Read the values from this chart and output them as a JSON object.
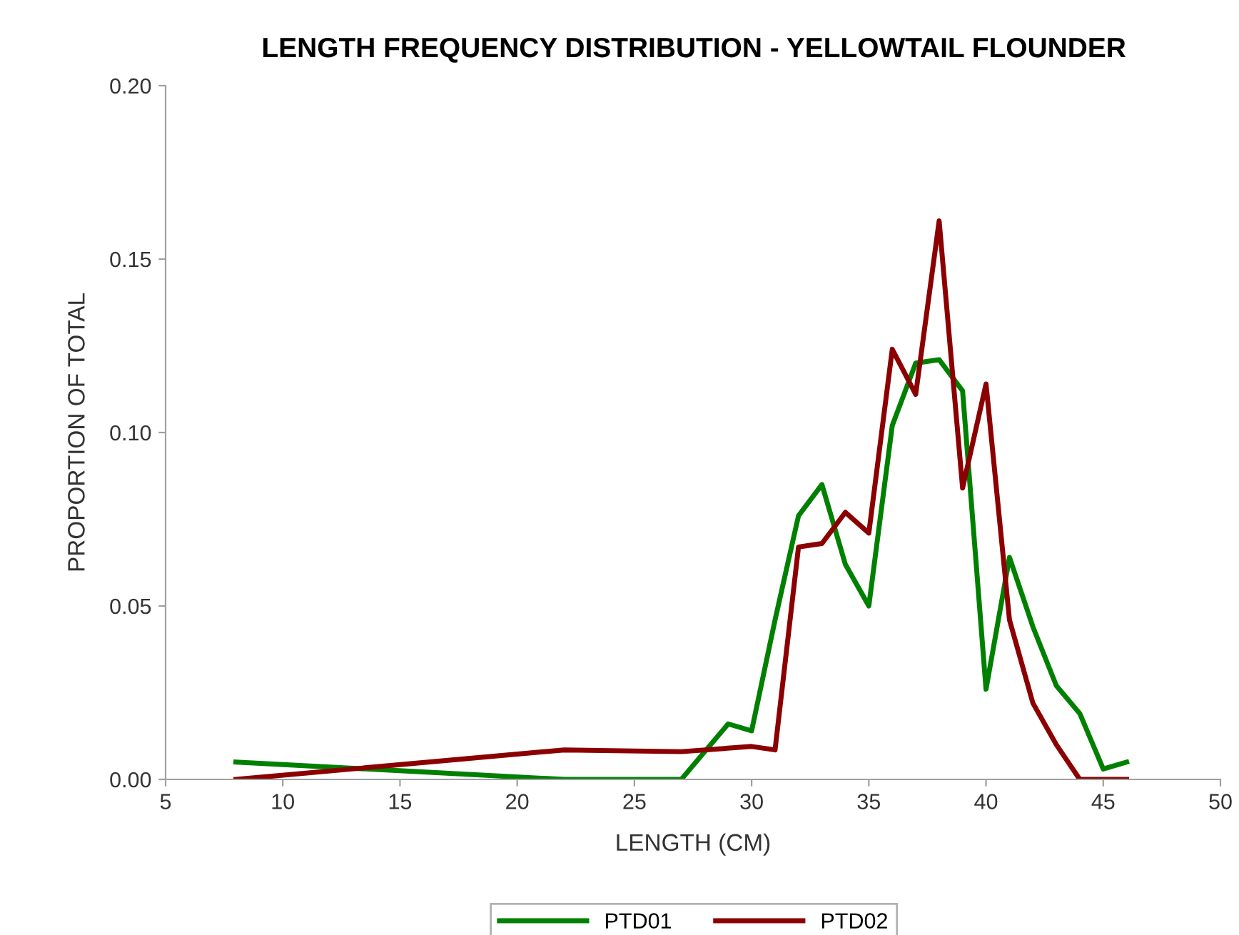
{
  "chart_data": {
    "type": "line",
    "title": "LENGTH FREQUENCY DISTRIBUTION - YELLOWTAIL FLOUNDER",
    "xlabel": "LENGTH (CM)",
    "ylabel": "PROPORTION OF TOTAL",
    "xlim": [
      5,
      50
    ],
    "xticks": [
      5,
      10,
      15,
      20,
      25,
      30,
      35,
      40,
      45,
      50
    ],
    "ylim": [
      0,
      0.2
    ],
    "yticks": [
      {
        "value": 0,
        "label": "0.00"
      },
      {
        "value": 0.05,
        "label": "0.05"
      },
      {
        "value": 0.1,
        "label": "0.10"
      },
      {
        "value": 0.15,
        "label": "0.15"
      },
      {
        "value": 0.2,
        "label": "0.20"
      }
    ],
    "grid": false,
    "legend": "bottom",
    "marker": "none",
    "line_style": "solid",
    "series": [
      {
        "name": "PTD01",
        "color": "#008000",
        "x": [
          8,
          22,
          27,
          29,
          30,
          31,
          32,
          33,
          34,
          35,
          36,
          37,
          38,
          39,
          40,
          41,
          42,
          43,
          44,
          45,
          46
        ],
        "values": [
          0.005,
          0,
          0,
          0.016,
          0.014,
          0.046,
          0.076,
          0.085,
          0.062,
          0.05,
          0.102,
          0.12,
          0.121,
          0.112,
          0.026,
          0.064,
          0.044,
          0.027,
          0.019,
          0.003,
          0.005
        ]
      },
      {
        "name": "PTD02",
        "color": "#8b0000",
        "x": [
          8,
          22,
          27,
          30,
          31,
          32,
          33,
          34,
          35,
          36,
          37,
          38,
          39,
          40,
          41,
          42,
          43,
          44,
          45,
          46
        ],
        "values": [
          0,
          0.0085,
          0.008,
          0.0095,
          0.0085,
          0.067,
          0.068,
          0.077,
          0.071,
          0.124,
          0.111,
          0.161,
          0.084,
          0.114,
          0.046,
          0.022,
          0.01,
          0,
          0,
          0
        ]
      }
    ]
  }
}
